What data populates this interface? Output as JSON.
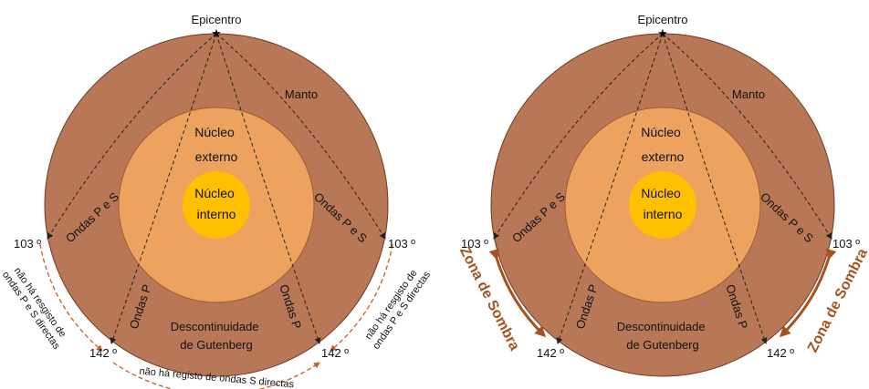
{
  "colors": {
    "mantle": "#b87756",
    "outer_core": "#eda35f",
    "inner_core": "#ffc000",
    "outline": "#6b3a20",
    "arrow": "#a6531f"
  },
  "left": {
    "epicenter": "Epicentro",
    "mantle": "Manto",
    "outer_core_line1": "Núcleo",
    "outer_core_line2": "externo",
    "inner_core_line1": "Núcleo",
    "inner_core_line2": "interno",
    "waves_ps_left": "Ondas P e S",
    "waves_ps_right": "Ondas P e S",
    "waves_p_left": "Ondas P",
    "waves_p_right": "Ondas P",
    "angle_103_left": "103 º",
    "angle_103_right": "103 º",
    "angle_142_left": "142 º",
    "angle_142_right": "142 º",
    "discontinuity_line1": "Descontinuidade",
    "discontinuity_line2": "de Gutenberg",
    "note_left_line1": "não há resgisto de",
    "note_left_line2": "ondas P e S directas",
    "note_right_line1": "não há resgisto de",
    "note_right_line2": "ondas P e S directas",
    "note_bottom": "não há registo de ondas S directas"
  },
  "right": {
    "epicenter": "Epicentro",
    "mantle": "Manto",
    "outer_core_line1": "Núcleo",
    "outer_core_line2": "externo",
    "inner_core_line1": "Núcleo",
    "inner_core_line2": "interno",
    "waves_ps_left": "Ondas P e S",
    "waves_ps_right": "Ondas P e S",
    "waves_p_left": "Ondas P",
    "waves_p_right": "Ondas P",
    "angle_103_left": "103 º",
    "angle_103_right": "103 º",
    "angle_142_left": "142 º",
    "angle_142_right": "142 º",
    "discontinuity_line1": "Descontinuidade",
    "discontinuity_line2": "de Gutenberg",
    "shadow_zone_left": "Zona de Sombra",
    "shadow_zone_right": "Zona de Sombra"
  }
}
